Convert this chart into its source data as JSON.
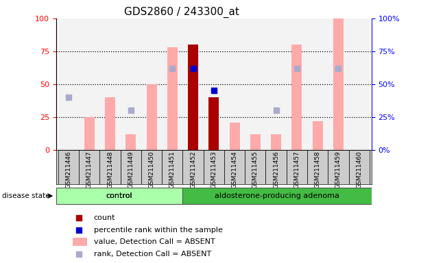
{
  "title": "GDS2860 / 243300_at",
  "samples": [
    "GSM211446",
    "GSM211447",
    "GSM211448",
    "GSM211449",
    "GSM211450",
    "GSM211451",
    "GSM211452",
    "GSM211453",
    "GSM211454",
    "GSM211455",
    "GSM211456",
    "GSM211457",
    "GSM211458",
    "GSM211459",
    "GSM211460"
  ],
  "n_control": 6,
  "value_absent": [
    null,
    25,
    40,
    12,
    50,
    78,
    null,
    null,
    21,
    12,
    12,
    80,
    22,
    100,
    null
  ],
  "rank_absent": [
    40,
    null,
    null,
    30,
    null,
    62,
    null,
    null,
    null,
    null,
    30,
    62,
    null,
    62,
    null
  ],
  "count": [
    null,
    null,
    null,
    null,
    null,
    null,
    80,
    40,
    null,
    null,
    null,
    null,
    null,
    null,
    null
  ],
  "percentile": [
    null,
    null,
    null,
    null,
    null,
    null,
    62,
    45,
    null,
    null,
    null,
    null,
    null,
    null,
    null
  ],
  "ylim": [
    0,
    100
  ],
  "yticks": [
    0,
    25,
    50,
    75,
    100
  ],
  "bar_color_absent": "#ffaaaa",
  "rank_color_absent": "#aaaacc",
  "count_color": "#aa0000",
  "percentile_color": "#0000cc",
  "control_color": "#aaffaa",
  "adenoma_color": "#44bb44",
  "disease_state_label": "disease state",
  "control_label": "control",
  "adenoma_label": "aldosterone-producing adenoma",
  "legend_items": [
    "count",
    "percentile rank within the sample",
    "value, Detection Call = ABSENT",
    "rank, Detection Call = ABSENT"
  ]
}
